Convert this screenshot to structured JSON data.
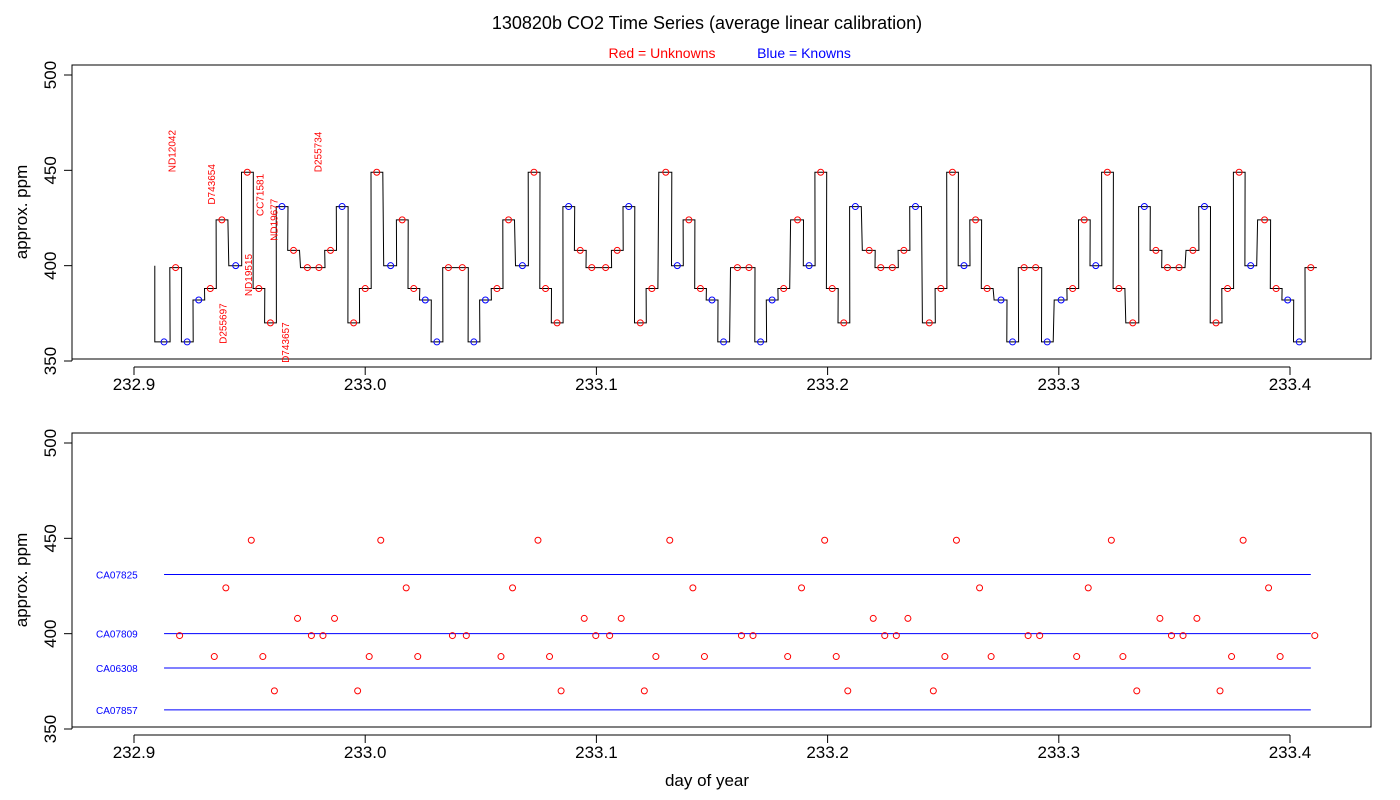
{
  "title": "130820b   CO2 Time Series (average linear calibration)",
  "legend": {
    "red_label": "Red = Unknowns",
    "blue_label": "Blue = Knowns"
  },
  "colors": {
    "unknown": "#ff0000",
    "known": "#0000ff",
    "trace": "#000000"
  },
  "chart_data": [
    {
      "type": "line",
      "title": "130820b   CO2 Time Series (average linear calibration)",
      "xlabel": "",
      "ylabel": "approx. ppm",
      "xlim": [
        232.88,
        233.42
      ],
      "ylim": [
        350,
        500
      ],
      "x_ticks": [
        232.9,
        233.0,
        233.1,
        233.2,
        233.3,
        233.4
      ],
      "x_tick_labels": [
        "232.9",
        "233.0",
        "233.1",
        "233.2",
        "233.3",
        "233.4"
      ],
      "y_ticks": [
        350,
        400,
        450,
        500
      ],
      "y_tick_labels": [
        "350",
        "400",
        "450",
        "500"
      ],
      "grid": false,
      "points": [
        {
          "x": 232.913,
          "y": 360,
          "kind": "known"
        },
        {
          "x": 232.918,
          "y": 399,
          "kind": "unknown"
        },
        {
          "x": 232.923,
          "y": 360,
          "kind": "known"
        },
        {
          "x": 232.928,
          "y": 382,
          "kind": "known"
        },
        {
          "x": 232.933,
          "y": 388,
          "kind": "unknown"
        },
        {
          "x": 232.938,
          "y": 424,
          "kind": "unknown"
        },
        {
          "x": 232.944,
          "y": 400,
          "kind": "known"
        },
        {
          "x": 232.949,
          "y": 449,
          "kind": "unknown"
        },
        {
          "x": 232.954,
          "y": 388,
          "kind": "unknown"
        },
        {
          "x": 232.959,
          "y": 370,
          "kind": "unknown"
        },
        {
          "x": 232.964,
          "y": 431,
          "kind": "known"
        },
        {
          "x": 232.969,
          "y": 408,
          "kind": "unknown"
        },
        {
          "x": 232.975,
          "y": 399,
          "kind": "unknown"
        },
        {
          "x": 232.98,
          "y": 399,
          "kind": "unknown"
        },
        {
          "x": 232.985,
          "y": 408,
          "kind": "unknown"
        },
        {
          "x": 232.99,
          "y": 431,
          "kind": "known"
        },
        {
          "x": 232.995,
          "y": 370,
          "kind": "unknown"
        },
        {
          "x": 233.0,
          "y": 388,
          "kind": "unknown"
        },
        {
          "x": 233.005,
          "y": 449,
          "kind": "unknown"
        },
        {
          "x": 233.011,
          "y": 400,
          "kind": "known"
        },
        {
          "x": 233.016,
          "y": 424,
          "kind": "unknown"
        },
        {
          "x": 233.021,
          "y": 388,
          "kind": "unknown"
        },
        {
          "x": 233.026,
          "y": 382,
          "kind": "known"
        },
        {
          "x": 233.031,
          "y": 360,
          "kind": "known"
        },
        {
          "x": 233.036,
          "y": 399,
          "kind": "unknown"
        },
        {
          "x": 233.042,
          "y": 399,
          "kind": "unknown"
        },
        {
          "x": 233.047,
          "y": 360,
          "kind": "known"
        },
        {
          "x": 233.052,
          "y": 382,
          "kind": "known"
        },
        {
          "x": 233.057,
          "y": 388,
          "kind": "unknown"
        },
        {
          "x": 233.062,
          "y": 424,
          "kind": "unknown"
        },
        {
          "x": 233.068,
          "y": 400,
          "kind": "known"
        },
        {
          "x": 233.073,
          "y": 449,
          "kind": "unknown"
        },
        {
          "x": 233.078,
          "y": 388,
          "kind": "unknown"
        },
        {
          "x": 233.083,
          "y": 370,
          "kind": "unknown"
        },
        {
          "x": 233.088,
          "y": 431,
          "kind": "known"
        },
        {
          "x": 233.093,
          "y": 408,
          "kind": "unknown"
        },
        {
          "x": 233.098,
          "y": 399,
          "kind": "unknown"
        },
        {
          "x": 233.104,
          "y": 399,
          "kind": "unknown"
        },
        {
          "x": 233.109,
          "y": 408,
          "kind": "unknown"
        },
        {
          "x": 233.114,
          "y": 431,
          "kind": "known"
        },
        {
          "x": 233.119,
          "y": 370,
          "kind": "unknown"
        },
        {
          "x": 233.124,
          "y": 388,
          "kind": "unknown"
        },
        {
          "x": 233.13,
          "y": 449,
          "kind": "unknown"
        },
        {
          "x": 233.135,
          "y": 400,
          "kind": "known"
        },
        {
          "x": 233.14,
          "y": 424,
          "kind": "unknown"
        },
        {
          "x": 233.145,
          "y": 388,
          "kind": "unknown"
        },
        {
          "x": 233.15,
          "y": 382,
          "kind": "known"
        },
        {
          "x": 233.155,
          "y": 360,
          "kind": "known"
        },
        {
          "x": 233.161,
          "y": 399,
          "kind": "unknown"
        },
        {
          "x": 233.166,
          "y": 399,
          "kind": "unknown"
        },
        {
          "x": 233.171,
          "y": 360,
          "kind": "known"
        },
        {
          "x": 233.176,
          "y": 382,
          "kind": "known"
        },
        {
          "x": 233.181,
          "y": 388,
          "kind": "unknown"
        },
        {
          "x": 233.187,
          "y": 424,
          "kind": "unknown"
        },
        {
          "x": 233.192,
          "y": 400,
          "kind": "known"
        },
        {
          "x": 233.197,
          "y": 449,
          "kind": "unknown"
        },
        {
          "x": 233.202,
          "y": 388,
          "kind": "unknown"
        },
        {
          "x": 233.207,
          "y": 370,
          "kind": "unknown"
        },
        {
          "x": 233.212,
          "y": 431,
          "kind": "known"
        },
        {
          "x": 233.218,
          "y": 408,
          "kind": "unknown"
        },
        {
          "x": 233.223,
          "y": 399,
          "kind": "unknown"
        },
        {
          "x": 233.228,
          "y": 399,
          "kind": "unknown"
        },
        {
          "x": 233.233,
          "y": 408,
          "kind": "unknown"
        },
        {
          "x": 233.238,
          "y": 431,
          "kind": "known"
        },
        {
          "x": 233.244,
          "y": 370,
          "kind": "unknown"
        },
        {
          "x": 233.249,
          "y": 388,
          "kind": "unknown"
        },
        {
          "x": 233.254,
          "y": 449,
          "kind": "unknown"
        },
        {
          "x": 233.259,
          "y": 400,
          "kind": "known"
        },
        {
          "x": 233.264,
          "y": 424,
          "kind": "unknown"
        },
        {
          "x": 233.269,
          "y": 388,
          "kind": "unknown"
        },
        {
          "x": 233.275,
          "y": 382,
          "kind": "known"
        },
        {
          "x": 233.28,
          "y": 360,
          "kind": "known"
        },
        {
          "x": 233.285,
          "y": 399,
          "kind": "unknown"
        },
        {
          "x": 233.29,
          "y": 399,
          "kind": "unknown"
        },
        {
          "x": 233.295,
          "y": 360,
          "kind": "known"
        },
        {
          "x": 233.301,
          "y": 382,
          "kind": "known"
        },
        {
          "x": 233.306,
          "y": 388,
          "kind": "unknown"
        },
        {
          "x": 233.311,
          "y": 424,
          "kind": "unknown"
        },
        {
          "x": 233.316,
          "y": 400,
          "kind": "known"
        },
        {
          "x": 233.321,
          "y": 449,
          "kind": "unknown"
        },
        {
          "x": 233.326,
          "y": 388,
          "kind": "unknown"
        },
        {
          "x": 233.332,
          "y": 370,
          "kind": "unknown"
        },
        {
          "x": 233.337,
          "y": 431,
          "kind": "known"
        },
        {
          "x": 233.342,
          "y": 408,
          "kind": "unknown"
        },
        {
          "x": 233.347,
          "y": 399,
          "kind": "unknown"
        },
        {
          "x": 233.352,
          "y": 399,
          "kind": "unknown"
        },
        {
          "x": 233.358,
          "y": 408,
          "kind": "unknown"
        },
        {
          "x": 233.363,
          "y": 431,
          "kind": "known"
        },
        {
          "x": 233.368,
          "y": 370,
          "kind": "unknown"
        },
        {
          "x": 233.373,
          "y": 388,
          "kind": "unknown"
        },
        {
          "x": 233.378,
          "y": 449,
          "kind": "unknown"
        },
        {
          "x": 233.383,
          "y": 400,
          "kind": "known"
        },
        {
          "x": 233.389,
          "y": 424,
          "kind": "unknown"
        },
        {
          "x": 233.394,
          "y": 388,
          "kind": "unknown"
        },
        {
          "x": 233.399,
          "y": 382,
          "kind": "known"
        },
        {
          "x": 233.404,
          "y": 360,
          "kind": "known"
        },
        {
          "x": 233.409,
          "y": 399,
          "kind": "unknown"
        }
      ],
      "annotations": [
        {
          "text": "ND12042",
          "x": 232.918,
          "y": 449
        },
        {
          "text": "D743654",
          "x": 232.935,
          "y": 432
        },
        {
          "text": "D255697",
          "x": 232.94,
          "y": 359
        },
        {
          "text": "ND19515",
          "x": 232.951,
          "y": 384
        },
        {
          "text": "CC71581",
          "x": 232.956,
          "y": 426
        },
        {
          "text": "ND19677",
          "x": 232.962,
          "y": 413
        },
        {
          "text": "D743657",
          "x": 232.967,
          "y": 349
        },
        {
          "text": "D255734",
          "x": 232.981,
          "y": 449
        }
      ]
    },
    {
      "type": "scatter",
      "xlabel": "day of year",
      "ylabel": "approx. ppm",
      "xlim": [
        232.88,
        233.42
      ],
      "ylim": [
        350,
        500
      ],
      "x_ticks": [
        232.9,
        233.0,
        233.1,
        233.2,
        233.3,
        233.4
      ],
      "x_tick_labels": [
        "232.9",
        "233.0",
        "233.1",
        "233.2",
        "233.3",
        "233.4"
      ],
      "y_ticks": [
        350,
        400,
        450,
        500
      ],
      "y_tick_labels": [
        "350",
        "400",
        "450",
        "500"
      ],
      "grid": false,
      "reference_lines": [
        {
          "name": "CA07825",
          "y": 431,
          "x_start": 232.913,
          "x_end": 233.409
        },
        {
          "name": "CA07809",
          "y": 400,
          "x_start": 232.913,
          "x_end": 233.409
        },
        {
          "name": "CA06308",
          "y": 382,
          "x_start": 232.913,
          "x_end": 233.409
        },
        {
          "name": "CA07857",
          "y": 360,
          "x_start": 232.913,
          "x_end": 233.409
        }
      ],
      "points_source": "unknown points of the time series (same x and y values)"
    }
  ]
}
